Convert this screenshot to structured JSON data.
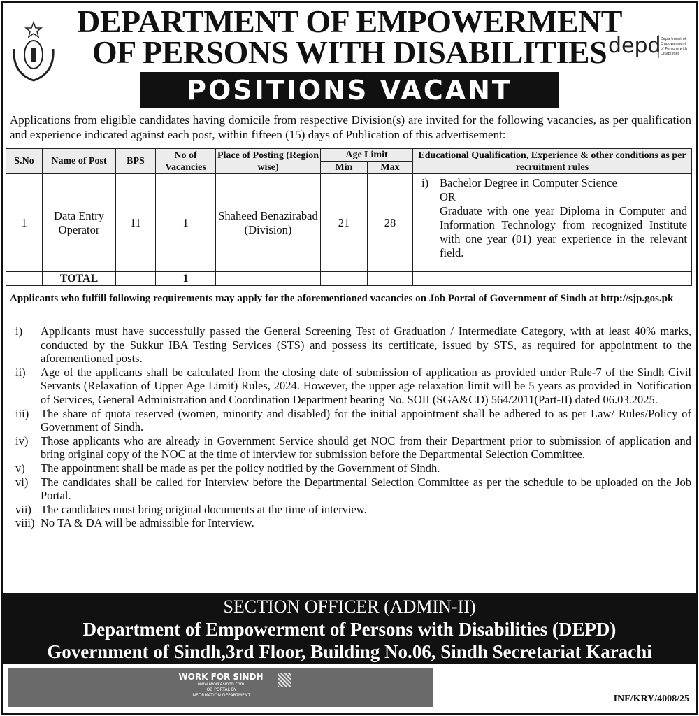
{
  "header": {
    "line1": "DEPARTMENT OF EMPOWERMENT",
    "line2": "OF PERSONS WITH DISABILITIES",
    "banner": "POSITIONS VACANT",
    "logo_left": "Government of Sindh seal",
    "logo_right": {
      "mark": "depd",
      "text": "Department of Empowerment of Persons with Disabilities"
    }
  },
  "intro": "Applications from eligible candidates having domicile from respective Division(s) are invited for the following vacancies, as per qualification and experience indicated against each post, within fifteen (15) days of Publication of this advertisement:",
  "table": {
    "headers": {
      "sno": "S.No",
      "post": "Name of Post",
      "bps": "BPS",
      "vacancies": "No of Vacancies",
      "place": "Place of Posting (Region wise)",
      "age": "Age Limit",
      "min": "Min",
      "max": "Max",
      "edu": "Educational Qualification, Experience & other conditions as per recruitment rules"
    },
    "rows": [
      {
        "sno": "1",
        "post": "Data Entry Operator",
        "bps": "11",
        "vacancies": "1",
        "place": "Shaheed Benazirabad (Division)",
        "min": "21",
        "max": "28",
        "edu_num": "i)",
        "edu": [
          "Bachelor Degree in Computer Science",
          "OR",
          "Graduate with one year Diploma in Computer and Information Technology from recognized Institute with one year (01) year experience in the relevant field."
        ]
      }
    ],
    "total": {
      "label": "TOTAL",
      "vacancies": "1"
    }
  },
  "apply_note": "Applicants who fulfill following requirements may apply for the aforementioned vacancies on Job Portal of Government of Sindh at http://sjp.gos.pk",
  "conditions": [
    {
      "n": "i)",
      "t": "Applicants must have successfully passed the General Screening Test of Graduation / Intermediate Category, with at least 40% marks, conducted by the Sukkur IBA Testing Services (STS) and possess its certificate, issued by STS, as required for appointment to the aforementioned posts."
    },
    {
      "n": "ii)",
      "t": "Age of the applicants shall be calculated from the closing date of submission of application as provided under Rule-7 of the Sindh Civil Servants (Relaxation of Upper Age Limit) Rules, 2024. However, the upper age relaxation limit will be 5 years as provided in Notification of Services, General Administration and Coordination Department bearing No. SOII (SGA&CD) 564/2011(Part-II) dated 06.03.2025."
    },
    {
      "n": "iii)",
      "t": "The share of quota reserved (women, minority and disabled) for the initial appointment shall be adhered to as per Law/ Rules/Policy of Government of Sindh."
    },
    {
      "n": "iv)",
      "t": "Those applicants who are already in Government Service should get NOC from their Department prior to submission of application and bring original copy of the NOC at the time of interview for submission before the Departmental Selection Committee."
    },
    {
      "n": "v)",
      "t": "The appointment shall be made as per the policy notified by the Government of Sindh."
    },
    {
      "n": "vi)",
      "t": "The candidates shall be called for Interview before the Departmental Selection Committee as per the schedule to be uploaded on the Job Portal."
    },
    {
      "n": "vii)",
      "t": "The candidates must bring original documents at the time of interview."
    },
    {
      "n": "viii)",
      "t": "No TA & DA will be admissible for Interview."
    }
  ],
  "footer": {
    "line1": "SECTION OFFICER (ADMIN-II)",
    "line2": "Department of Empowerment of Persons with Disabilities (DEPD)",
    "line3": "Government of Sindh,3rd Floor, Building No.06, Sindh Secretariat Karachi"
  },
  "iwork": {
    "title": "WORK FOR SINDH",
    "url": "www.iwork4sindh.com",
    "line1": "JOB PORTAL BY",
    "line2": "INFORMATION DEPARTMENT"
  },
  "reference": "INF/KRY/4008/25"
}
